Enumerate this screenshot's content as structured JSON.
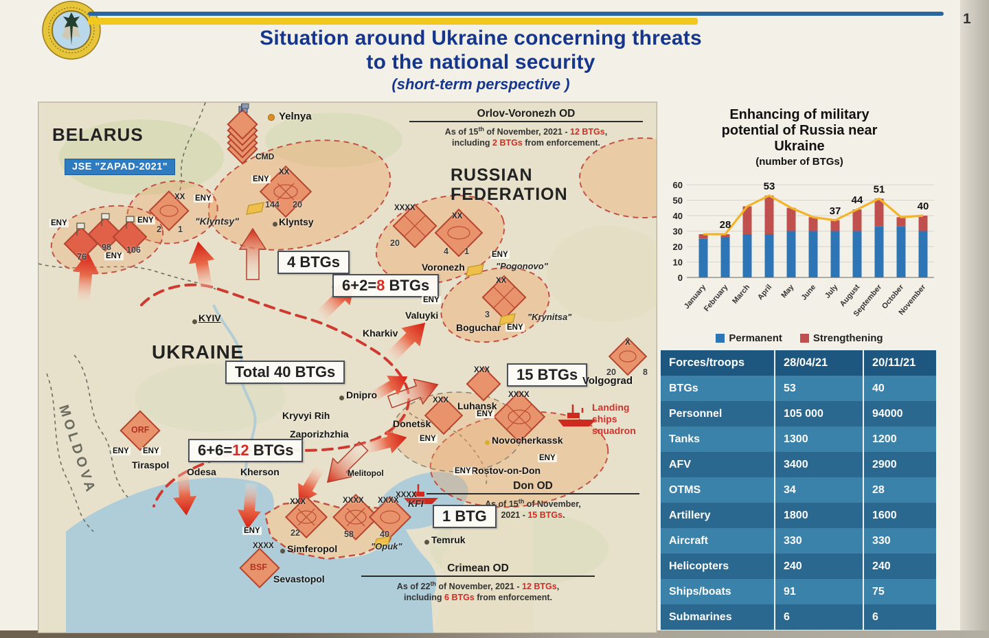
{
  "page": {
    "number": "1"
  },
  "header": {
    "title_line1": "Situation around Ukraine concerning threats",
    "title_line2": "to the national security",
    "subtitle": "(short-term perspective )"
  },
  "colors": {
    "permanent_blue": "#2e75b6",
    "strengthening_red": "#c0504d",
    "line_yellow": "#f2b42a",
    "title_blue": "#16368c",
    "alert_red": "#d22c24"
  },
  "map": {
    "countries": {
      "belarus": "BELARUS",
      "ukraine": "UKRAINE",
      "russia_line1": "RUSSIAN",
      "russia_line2": "FEDERATION",
      "moldova": "MOLDOVA"
    },
    "exercise_badge": "JSE \"ZAPAD-2021\"",
    "cities": {
      "yelnya": "Yelnya",
      "klyntsy": "Klyntsy",
      "kyiv": "KYIV",
      "kharkiv": "Kharkiv",
      "valuyki": "Valuyki",
      "boguchar": "Boguchar",
      "voronezh": "Voronezh",
      "volgograd": "Volgograd",
      "dnipro": "Dnipro",
      "kryvyi_rih": "Kryvyi Rih",
      "zaporizhzhia": "Zaporizhzhia",
      "donetsk": "Donetsk",
      "luhansk": "Luhansk",
      "novocherkassk": "Novocherkassk",
      "rostov": "Rostov-on-Don",
      "odesa": "Odesa",
      "kherson": "Kherson",
      "melitopol": "Melitopol",
      "tiraspol": "Tiraspol",
      "simferopol": "Simferopol",
      "sevastopol": "Sevastopol",
      "temruk": "Temruk"
    },
    "training_areas": {
      "klyntsy": "\"Klyntsy\"",
      "pogonovo": "\"Pogonovo\"",
      "krynitsa": "\"Krynitsa\"",
      "opuk": "\"Opuk\""
    },
    "boxes": {
      "btgs4": "4 BTGs",
      "btgs8": {
        "pre": "6+2=",
        "red": "8",
        "post": " BTGs"
      },
      "total": "Total 40 BTGs",
      "btgs15": "15 BTGs",
      "btgs12": {
        "pre": "6+6=",
        "red": "12",
        "post": " BTGs"
      },
      "btg1": "1 BTG"
    },
    "callouts": {
      "orlov": {
        "title": "Orlov-Voronezh OD",
        "l1a": "As of 15",
        "l1sup": "th",
        "l1b": " of November, 2021 - ",
        "l1red": "12 BTGs",
        "l1c": ",",
        "l2a": "including ",
        "l2red": "2 BTGs",
        "l2b": " from enforcement."
      },
      "don": {
        "title": "Don OD",
        "l1a": "As of 15",
        "l1sup": "th",
        "l1b": " of November,",
        "l2a": "2021 - ",
        "l2red": "15 BTGs",
        "l2b": "."
      },
      "crimean": {
        "title": "Crimean OD",
        "l1a": "As of 22",
        "l1sup": "th",
        "l1b": " of November, 2021 - ",
        "l1red": "12 BTGs",
        "l1c": ",",
        "l2a": "including ",
        "l2red": "6 BTGs",
        "l2b": " from enforcement."
      },
      "landing": {
        "l1": "Landing",
        "l2": "ships",
        "l3": "squadron"
      }
    },
    "unit_labels": {
      "cmd": "CMD",
      "kfi": "KFI",
      "bsf": "BSF",
      "orf": "ORF"
    },
    "eny": "ENY",
    "echelons": {
      "x": "X",
      "xx": "XX",
      "xxx": "XXX",
      "xxxx": "XXXX"
    },
    "numbers": {
      "n144": "144",
      "n20": "20",
      "n2": "2",
      "n1": "1",
      "n76": "76",
      "n98": "98",
      "n106": "106",
      "n4": "4",
      "n3": "3",
      "n8": "8",
      "n22": "22",
      "n58": "58",
      "n40": "40"
    }
  },
  "chart_data": {
    "type": "bar",
    "subtype": "stacked-bars-with-total-line",
    "title_lines": [
      "Enhancing of military",
      "potential of Russia near",
      "Ukraine"
    ],
    "subtitle": "(number of BTGs)",
    "categories": [
      "January",
      "February",
      "March",
      "April",
      "May",
      "June",
      "July",
      "August",
      "September",
      "October",
      "November"
    ],
    "series": [
      {
        "name": "Permanent",
        "color": "#2e75b6",
        "values": [
          25,
          26,
          28,
          28,
          30,
          30,
          30,
          30,
          33,
          33,
          30
        ]
      },
      {
        "name": "Strengthening",
        "color": "#c0504d",
        "values": [
          3,
          2,
          18,
          25,
          15,
          9,
          7,
          14,
          18,
          6,
          10
        ]
      }
    ],
    "totals": [
      28,
      28,
      46,
      53,
      45,
      39,
      37,
      44,
      51,
      39,
      40
    ],
    "shown_labels": [
      null,
      28,
      null,
      53,
      null,
      null,
      37,
      44,
      51,
      null,
      40
    ],
    "line_color": "#f2b42a",
    "xlabel": "",
    "ylabel": "",
    "ylim": [
      0,
      60
    ],
    "yticks": [
      0,
      10,
      20,
      30,
      40,
      50,
      60
    ],
    "grid": true,
    "legend_position": "bottom"
  },
  "legend": {
    "permanent": "Permanent",
    "strengthening": "Strengthening"
  },
  "table": {
    "headers": [
      "Forces/troops",
      "28/04/21",
      "20/11/21"
    ],
    "rows": [
      [
        "BTGs",
        "53",
        "40"
      ],
      [
        "Personnel",
        "105 000",
        "94000"
      ],
      [
        "Tanks",
        "1300",
        "1200"
      ],
      [
        "AFV",
        "3400",
        "2900"
      ],
      [
        "OTMS",
        "34",
        "28"
      ],
      [
        "Artillery",
        "1800",
        "1600"
      ],
      [
        "Aircraft",
        "330",
        "330"
      ],
      [
        "Helicopters",
        "240",
        "240"
      ],
      [
        "Ships/boats",
        "91",
        "75"
      ],
      [
        "Submarines",
        "6",
        "6"
      ]
    ]
  }
}
